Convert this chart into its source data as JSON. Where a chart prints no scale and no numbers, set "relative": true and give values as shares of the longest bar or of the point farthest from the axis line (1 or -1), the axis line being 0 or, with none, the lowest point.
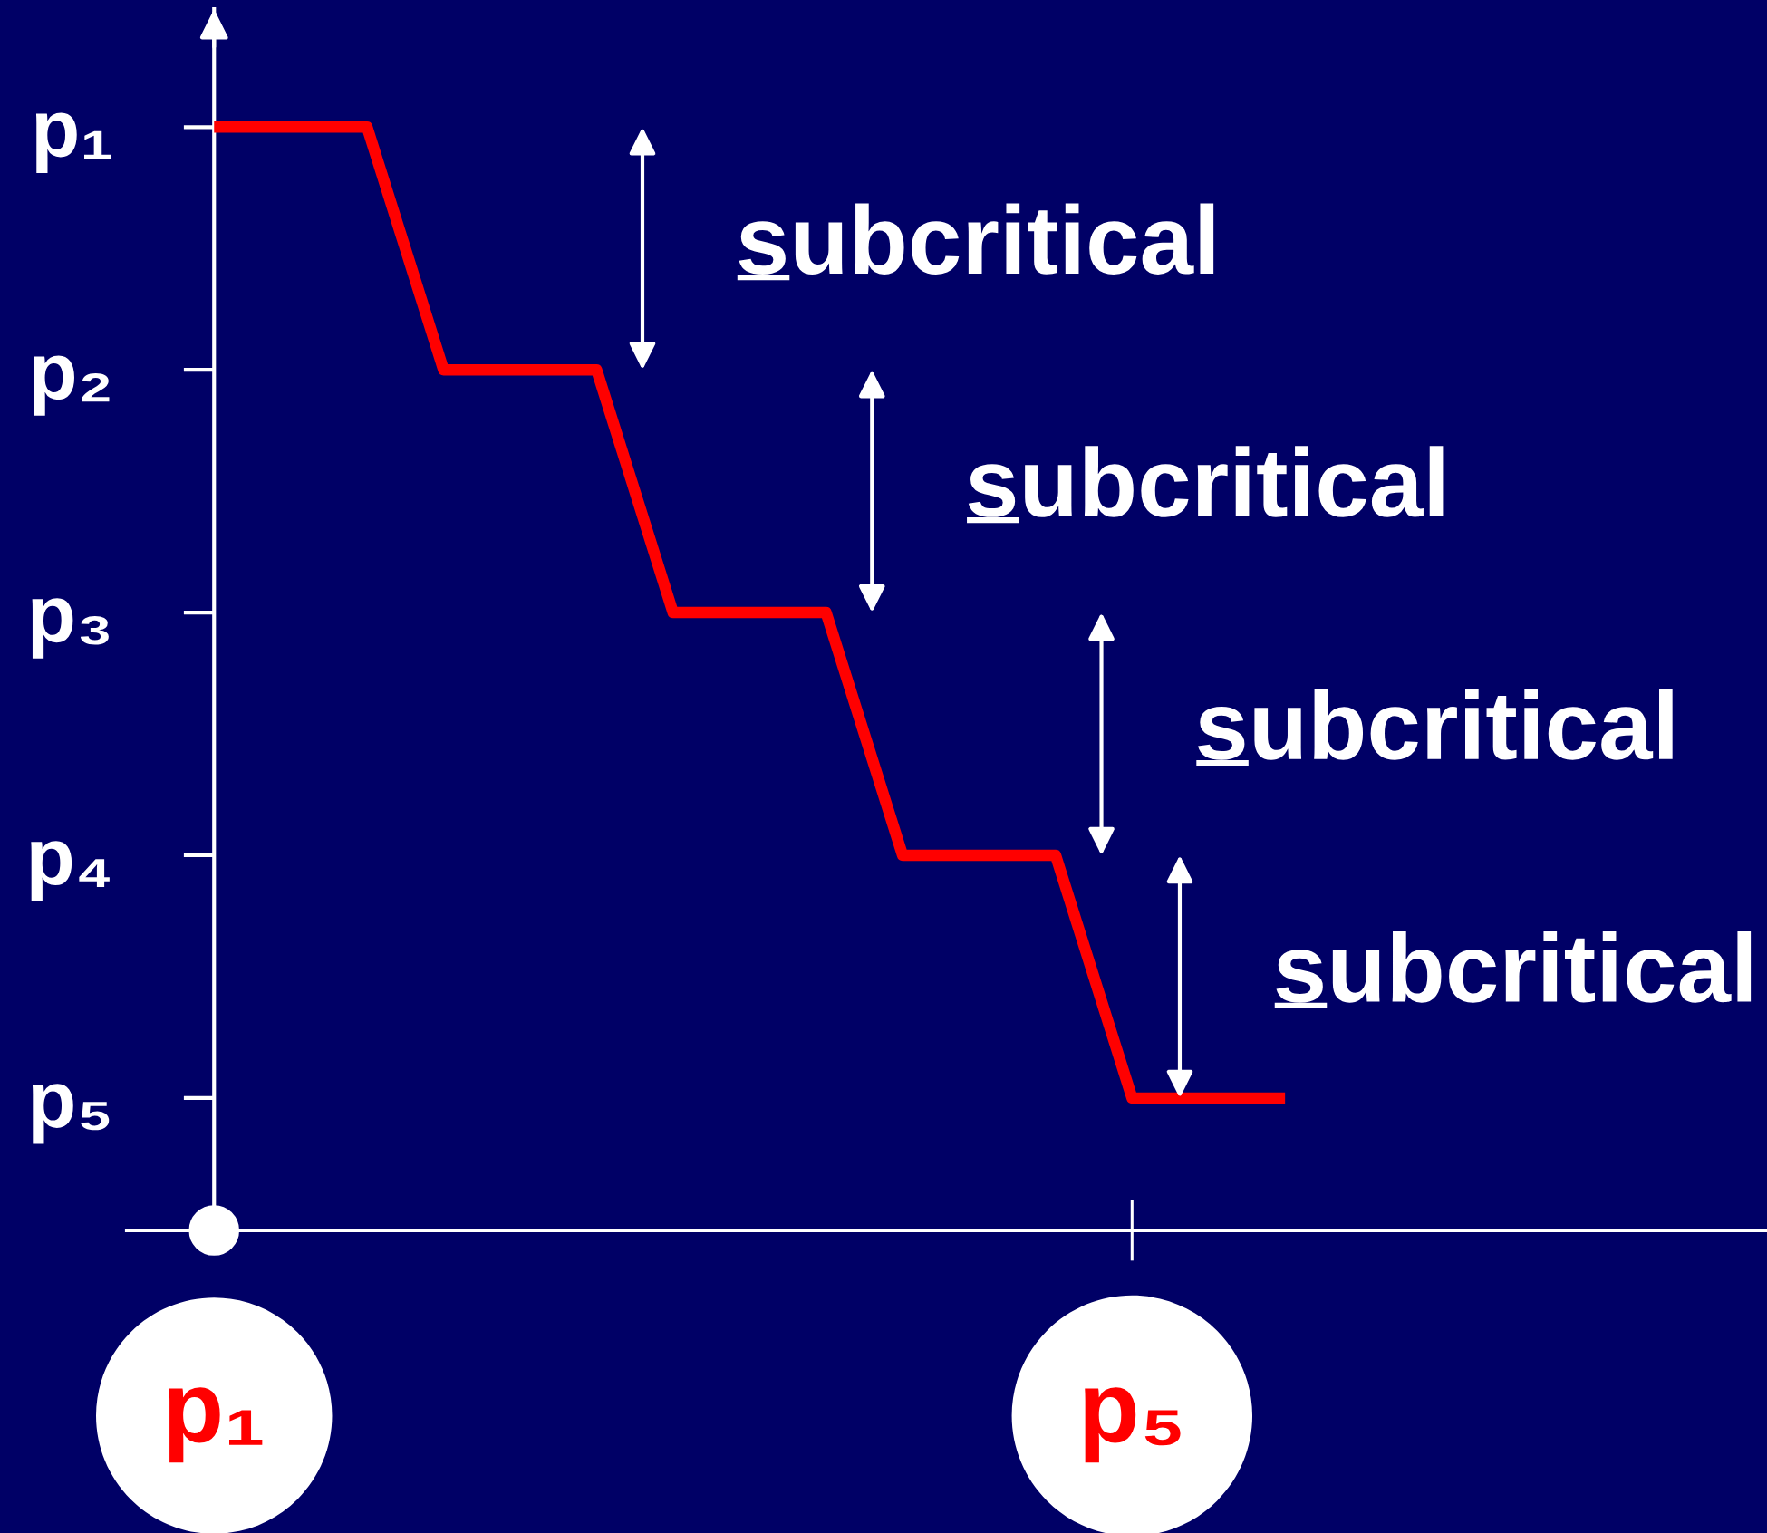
{
  "chart_data": {
    "type": "line",
    "relative": true,
    "color": "#ff0000",
    "line_style": "solid",
    "categories": [
      "p₁",
      null,
      null,
      null,
      null,
      null,
      null,
      null,
      null,
      null,
      null,
      null,
      "p₅",
      null,
      null
    ],
    "values": [
      1,
      1,
      1,
      0.78,
      0.78,
      0.78,
      0.56,
      0.56,
      0.56,
      0.34,
      0.34,
      0.34,
      0.12,
      0.12,
      0.12
    ],
    "annotations": [
      "p₁",
      "p₂",
      "p₃",
      "p₄",
      "p₅",
      "subcritical",
      "subcritical",
      "subcritical",
      "subcritical"
    ]
  }
}
